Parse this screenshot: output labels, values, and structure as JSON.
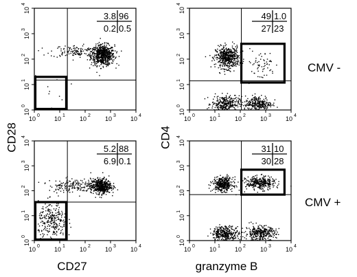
{
  "chart_data": {
    "type": "scatter",
    "x_scale": "log",
    "y_scale": "log",
    "tick_labels": [
      "10",
      "10",
      "10",
      "10",
      "10"
    ],
    "tick_exponents": [
      "0",
      "1",
      "2",
      "3",
      "4"
    ],
    "xlim": [
      1,
      10000
    ],
    "ylim": [
      1,
      10000
    ],
    "row_labels": [
      "CMV -",
      "CMV +"
    ],
    "axis_labels": {
      "left_x": "CD27",
      "left_y": "CD28",
      "right_x": "granzyme B",
      "right_y": "CD4"
    },
    "panels": [
      {
        "id": "cmv-neg-cd27-cd28",
        "x_label": "CD27",
        "y_label": "CD28",
        "x_gate": 20,
        "y_gate": 15,
        "quadrant_percentages": {
          "upper_left": "3.8",
          "upper_right": "96",
          "lower_left": "0.2",
          "lower_right": "0.5"
        },
        "highlight_gate": {
          "x": [
            1,
            18
          ],
          "y": [
            1,
            20
          ]
        },
        "populations": [
          {
            "cx": 480,
            "cy": 150,
            "sx": 0.23,
            "sy": 0.2,
            "n": 650
          },
          {
            "cx": 40,
            "cy": 210,
            "sx": 0.5,
            "sy": 0.12,
            "n": 130
          },
          {
            "cx": 5,
            "cy": 4,
            "sx": 0.4,
            "sy": 0.4,
            "n": 12
          }
        ]
      },
      {
        "id": "cmv-neg-granzyme-cd4",
        "x_label": "granzyme B",
        "y_label": "CD4",
        "x_gate": 110,
        "y_gate": 14,
        "quadrant_percentages": {
          "upper_left": "49",
          "upper_right": "1.0",
          "lower_left": "27",
          "lower_right": "23"
        },
        "highlight_gate": {
          "x": [
            110,
            5500
          ],
          "y": [
            12,
            400
          ]
        },
        "populations": [
          {
            "cx": 30,
            "cy": 120,
            "sx": 0.23,
            "sy": 0.21,
            "n": 520
          },
          {
            "cx": 25,
            "cy": 1.8,
            "sx": 0.27,
            "sy": 0.16,
            "n": 300
          },
          {
            "cx": 500,
            "cy": 1.8,
            "sx": 0.27,
            "sy": 0.16,
            "n": 280
          },
          {
            "cx": 600,
            "cy": 60,
            "sx": 0.3,
            "sy": 0.3,
            "n": 60
          }
        ]
      },
      {
        "id": "cmv-pos-cd27-cd28",
        "x_label": "CD27",
        "y_label": "CD28",
        "x_gate": 20,
        "y_gate": 35,
        "quadrant_percentages": {
          "upper_left": "5.2",
          "upper_right": "88",
          "lower_left": "6.9",
          "lower_right": "0.1"
        },
        "highlight_gate": {
          "x": [
            1,
            18
          ],
          "y": [
            1,
            35
          ]
        },
        "populations": [
          {
            "cx": 400,
            "cy": 160,
            "sx": 0.2,
            "sy": 0.15,
            "n": 520
          },
          {
            "cx": 30,
            "cy": 170,
            "sx": 0.45,
            "sy": 0.14,
            "n": 160
          },
          {
            "cx": 5,
            "cy": 6,
            "sx": 0.28,
            "sy": 0.38,
            "n": 260
          }
        ]
      },
      {
        "id": "cmv-pos-granzyme-cd4",
        "x_label": "granzyme B",
        "y_label": "CD4",
        "x_gate": 110,
        "y_gate": 70,
        "quadrant_percentages": {
          "upper_left": "31",
          "upper_right": "10",
          "lower_left": "30",
          "lower_right": "28"
        },
        "highlight_gate": {
          "x": [
            110,
            5500
          ],
          "y": [
            70,
            700
          ]
        },
        "populations": [
          {
            "cx": 20,
            "cy": 190,
            "sx": 0.2,
            "sy": 0.14,
            "n": 380
          },
          {
            "cx": 600,
            "cy": 210,
            "sx": 0.28,
            "sy": 0.13,
            "n": 330
          },
          {
            "cx": 25,
            "cy": 2.0,
            "sx": 0.27,
            "sy": 0.15,
            "n": 330
          },
          {
            "cx": 600,
            "cy": 2.0,
            "sx": 0.3,
            "sy": 0.15,
            "n": 330
          }
        ]
      }
    ]
  }
}
